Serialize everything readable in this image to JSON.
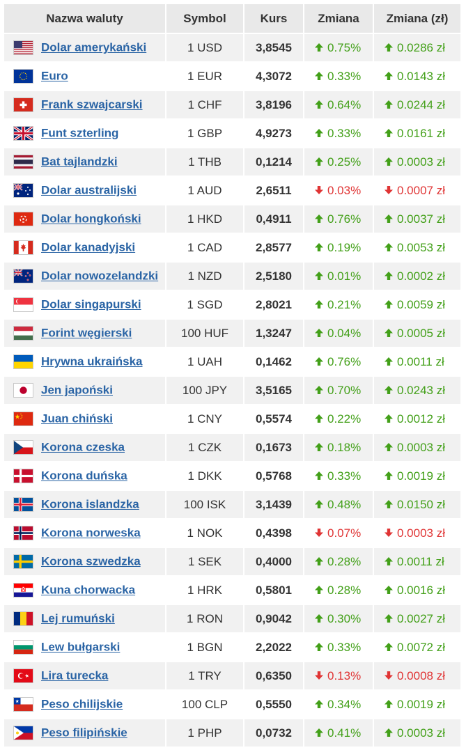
{
  "table": {
    "headers": [
      "Nazwa waluty",
      "Symbol",
      "Kurs",
      "Zmiana",
      "Zmiana (zł)"
    ],
    "rows": [
      {
        "name": "Dolar amerykański",
        "symbol": "1 USD",
        "rate": "3,8545",
        "change": "0.75%",
        "change_pln": "0.0286 zł",
        "dir": "up",
        "flag": "us-flag-icon"
      },
      {
        "name": "Euro",
        "symbol": "1 EUR",
        "rate": "4,3072",
        "change": "0.33%",
        "change_pln": "0.0143 zł",
        "dir": "up",
        "flag": "eu-flag-icon"
      },
      {
        "name": "Frank szwajcarski",
        "symbol": "1 CHF",
        "rate": "3,8196",
        "change": "0.64%",
        "change_pln": "0.0244 zł",
        "dir": "up",
        "flag": "ch-flag-icon"
      },
      {
        "name": "Funt szterling",
        "symbol": "1 GBP",
        "rate": "4,9273",
        "change": "0.33%",
        "change_pln": "0.0161 zł",
        "dir": "up",
        "flag": "gb-flag-icon"
      },
      {
        "name": "Bat tajlandzki",
        "symbol": "1 THB",
        "rate": "0,1214",
        "change": "0.25%",
        "change_pln": "0.0003 zł",
        "dir": "up",
        "flag": "th-flag-icon"
      },
      {
        "name": "Dolar australijski",
        "symbol": "1 AUD",
        "rate": "2,6511",
        "change": "0.03%",
        "change_pln": "0.0007 zł",
        "dir": "down",
        "flag": "au-flag-icon"
      },
      {
        "name": "Dolar hongkoński",
        "symbol": "1 HKD",
        "rate": "0,4911",
        "change": "0.76%",
        "change_pln": "0.0037 zł",
        "dir": "up",
        "flag": "hk-flag-icon"
      },
      {
        "name": "Dolar kanadyjski",
        "symbol": "1 CAD",
        "rate": "2,8577",
        "change": "0.19%",
        "change_pln": "0.0053 zł",
        "dir": "up",
        "flag": "ca-flag-icon"
      },
      {
        "name": "Dolar nowozelandzki",
        "symbol": "1 NZD",
        "rate": "2,5180",
        "change": "0.01%",
        "change_pln": "0.0002 zł",
        "dir": "up",
        "flag": "nz-flag-icon"
      },
      {
        "name": "Dolar singapurski",
        "symbol": "1 SGD",
        "rate": "2,8021",
        "change": "0.21%",
        "change_pln": "0.0059 zł",
        "dir": "up",
        "flag": "sg-flag-icon"
      },
      {
        "name": "Forint węgierski",
        "symbol": "100 HUF",
        "rate": "1,3247",
        "change": "0.04%",
        "change_pln": "0.0005 zł",
        "dir": "up",
        "flag": "hu-flag-icon"
      },
      {
        "name": "Hrywna ukraińska",
        "symbol": "1 UAH",
        "rate": "0,1462",
        "change": "0.76%",
        "change_pln": "0.0011 zł",
        "dir": "up",
        "flag": "ua-flag-icon"
      },
      {
        "name": "Jen japoński",
        "symbol": "100 JPY",
        "rate": "3,5165",
        "change": "0.70%",
        "change_pln": "0.0243 zł",
        "dir": "up",
        "flag": "jp-flag-icon"
      },
      {
        "name": "Juan chiński",
        "symbol": "1 CNY",
        "rate": "0,5574",
        "change": "0.22%",
        "change_pln": "0.0012 zł",
        "dir": "up",
        "flag": "cn-flag-icon"
      },
      {
        "name": "Korona czeska",
        "symbol": "1 CZK",
        "rate": "0,1673",
        "change": "0.18%",
        "change_pln": "0.0003 zł",
        "dir": "up",
        "flag": "cz-flag-icon"
      },
      {
        "name": "Korona duńska",
        "symbol": "1 DKK",
        "rate": "0,5768",
        "change": "0.33%",
        "change_pln": "0.0019 zł",
        "dir": "up",
        "flag": "dk-flag-icon"
      },
      {
        "name": "Korona islandzka",
        "symbol": "100 ISK",
        "rate": "3,1439",
        "change": "0.48%",
        "change_pln": "0.0150 zł",
        "dir": "up",
        "flag": "is-flag-icon"
      },
      {
        "name": "Korona norweska",
        "symbol": "1 NOK",
        "rate": "0,4398",
        "change": "0.07%",
        "change_pln": "0.0003 zł",
        "dir": "down",
        "flag": "no-flag-icon"
      },
      {
        "name": "Korona szwedzka",
        "symbol": "1 SEK",
        "rate": "0,4000",
        "change": "0.28%",
        "change_pln": "0.0011 zł",
        "dir": "up",
        "flag": "se-flag-icon"
      },
      {
        "name": "Kuna chorwacka",
        "symbol": "1 HRK",
        "rate": "0,5801",
        "change": "0.28%",
        "change_pln": "0.0016 zł",
        "dir": "up",
        "flag": "hr-flag-icon"
      },
      {
        "name": "Lej rumuński",
        "symbol": "1 RON",
        "rate": "0,9042",
        "change": "0.30%",
        "change_pln": "0.0027 zł",
        "dir": "up",
        "flag": "ro-flag-icon"
      },
      {
        "name": "Lew bułgarski",
        "symbol": "1 BGN",
        "rate": "2,2022",
        "change": "0.33%",
        "change_pln": "0.0072 zł",
        "dir": "up",
        "flag": "bg-flag-icon"
      },
      {
        "name": "Lira turecka",
        "symbol": "1 TRY",
        "rate": "0,6350",
        "change": "0.13%",
        "change_pln": "0.0008 zł",
        "dir": "down",
        "flag": "tr-flag-icon"
      },
      {
        "name": "Peso chilijskie",
        "symbol": "100 CLP",
        "rate": "0,5550",
        "change": "0.34%",
        "change_pln": "0.0019 zł",
        "dir": "up",
        "flag": "cl-flag-icon"
      },
      {
        "name": "Peso filipińskie",
        "symbol": "1 PHP",
        "rate": "0,0732",
        "change": "0.41%",
        "change_pln": "0.0003 zł",
        "dir": "up",
        "flag": "ph-flag-icon"
      }
    ]
  },
  "colors": {
    "link": "#2a64a5",
    "up": "#43a019",
    "down": "#e03535",
    "header_bg": "#e9e9e9",
    "row_alt_bg": "#f1f1f1"
  }
}
